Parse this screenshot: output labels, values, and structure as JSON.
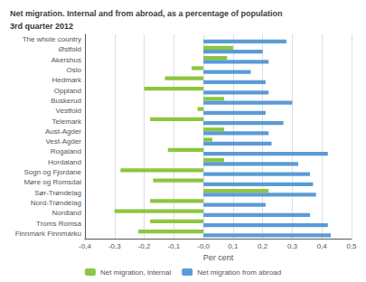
{
  "chart_data": {
    "type": "bar",
    "orientation": "horizontal",
    "title": "Net migration. Internal and from abroad, as a percentage of population",
    "subtitle": "3rd quarter 2012",
    "xlabel": "Per cent",
    "categories": [
      "The whole country",
      "Østfold",
      "Akershus",
      "Oslo",
      "Hedmark",
      "Oppland",
      "Buskerud",
      "Vestfold",
      "Telemark",
      "Aust-Agder",
      "Vest-Agder",
      "Rogaland",
      "Hordaland",
      "Sogn og Fjordane",
      "Møre og Romsdal",
      "Sør-Trøndelag",
      "Nord-Trøndelag",
      "Nordland",
      "Troms Romsa",
      "Finnmark Finnmárku"
    ],
    "series": [
      {
        "name": "Net migration, internal",
        "color": "#8dc63f",
        "values": [
          0.0,
          0.1,
          0.08,
          -0.04,
          -0.13,
          -0.2,
          0.07,
          -0.02,
          -0.18,
          0.07,
          0.03,
          -0.12,
          0.07,
          -0.28,
          -0.17,
          0.22,
          -0.18,
          -0.3,
          -0.18,
          -0.22
        ]
      },
      {
        "name": "Net migration from abroad",
        "color": "#5b9bd5",
        "values": [
          0.28,
          0.2,
          0.22,
          0.16,
          0.21,
          0.22,
          0.3,
          0.21,
          0.27,
          0.22,
          0.23,
          0.42,
          0.32,
          0.36,
          0.37,
          0.38,
          0.21,
          0.36,
          0.42,
          0.43
        ]
      }
    ],
    "xlim": [
      -0.4,
      0.5
    ],
    "xticks": [
      {
        "value": -0.4,
        "label": "-0,4"
      },
      {
        "value": -0.3,
        "label": "-0,3"
      },
      {
        "value": -0.2,
        "label": "-0,2"
      },
      {
        "value": -0.1,
        "label": "-0,1"
      },
      {
        "value": 0.0,
        "label": "-0,0"
      },
      {
        "value": 0.1,
        "label": "0,1"
      },
      {
        "value": 0.2,
        "label": "0,2"
      },
      {
        "value": 0.3,
        "label": "0,3"
      },
      {
        "value": 0.4,
        "label": "0,4"
      },
      {
        "value": 0.5,
        "label": "0,5"
      }
    ],
    "grid": true,
    "legend": "bottom"
  }
}
